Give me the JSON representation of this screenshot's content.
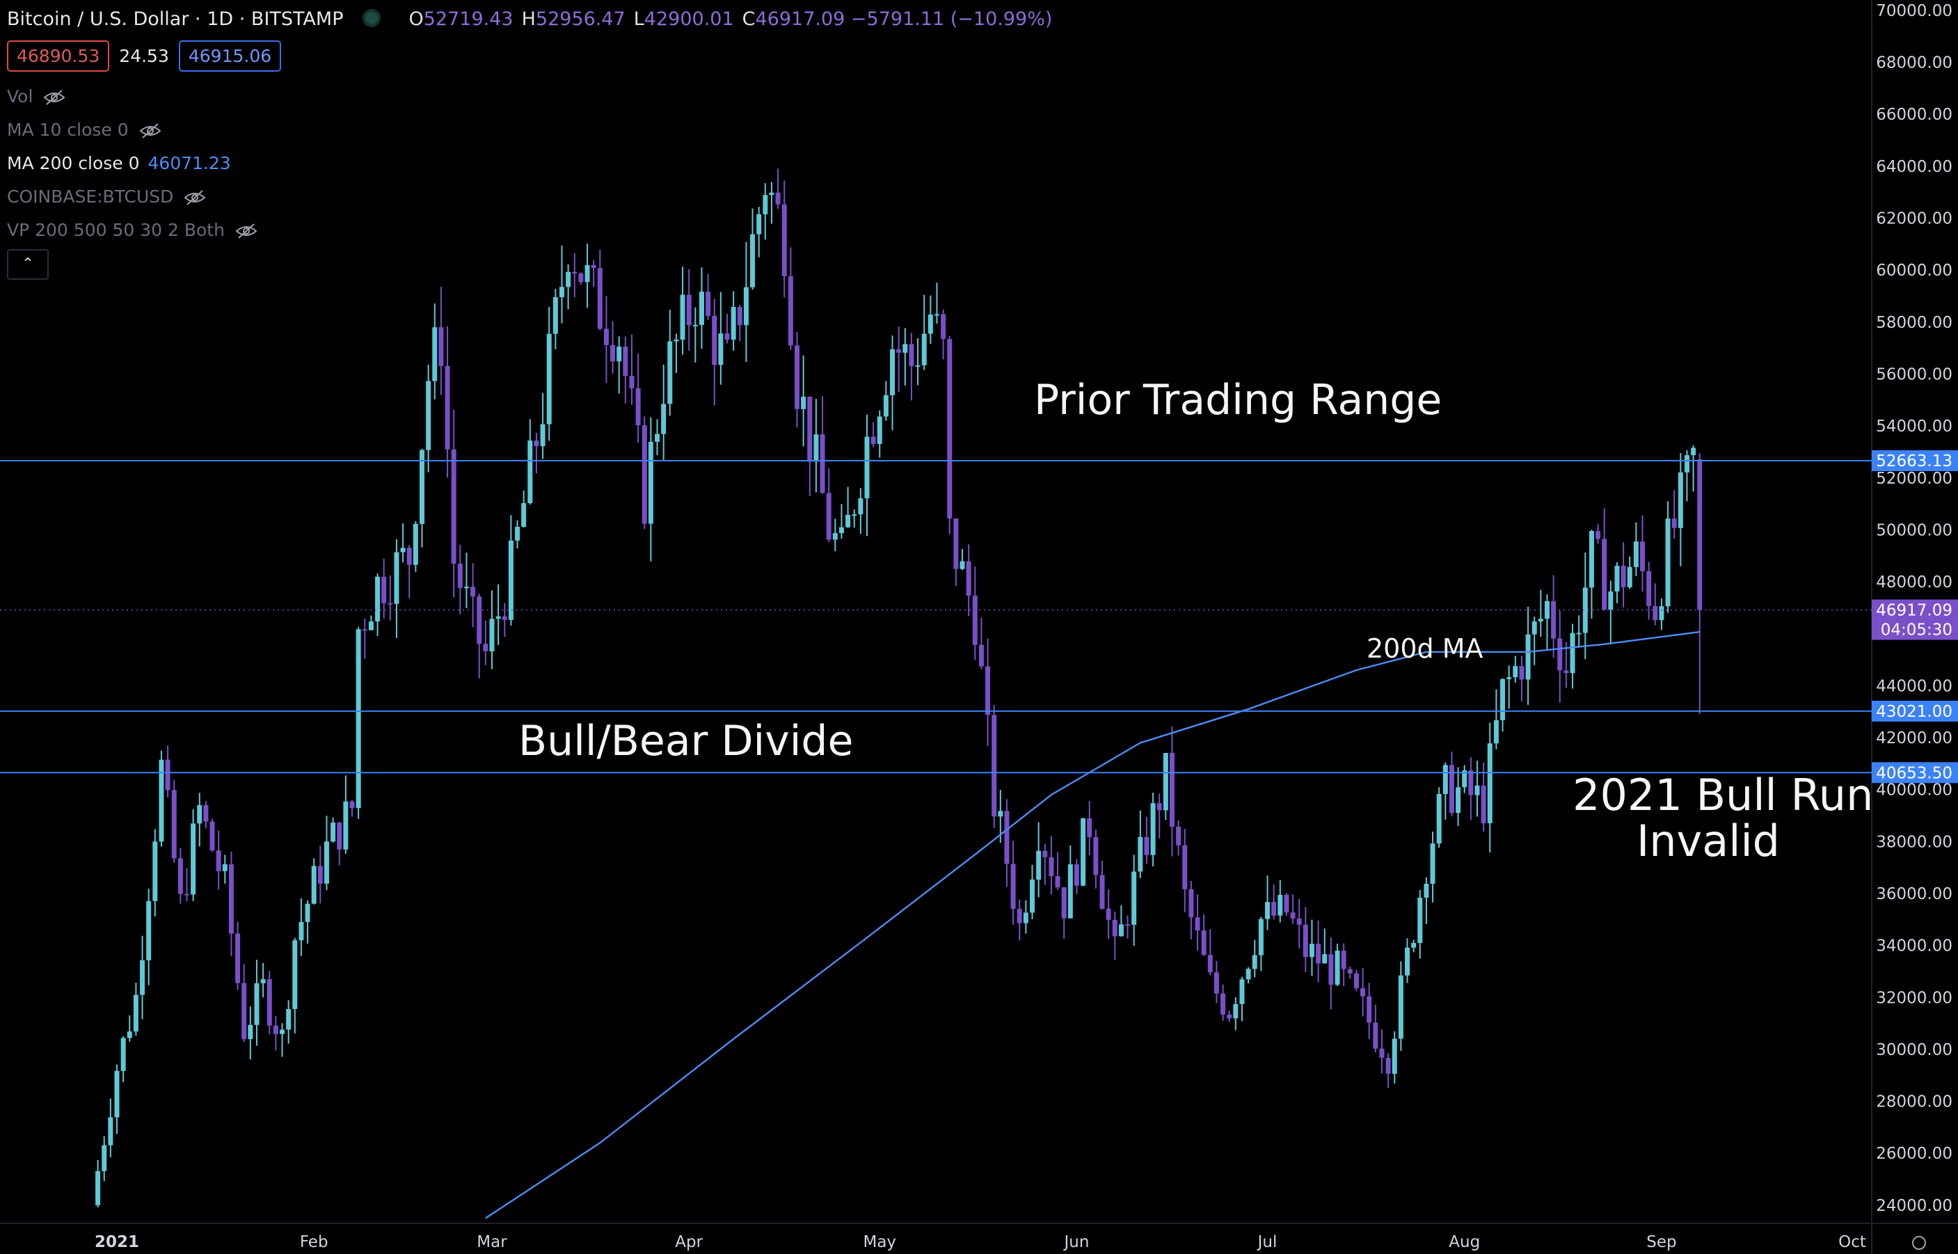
{
  "header": {
    "symbol_title": "Bitcoin / U.S. Dollar · 1D · BITSTAMP",
    "ohlc": [
      {
        "label": "O",
        "value": "52719.43"
      },
      {
        "label": "H",
        "value": "52956.47"
      },
      {
        "label": "L",
        "value": "42900.01"
      },
      {
        "label": "C",
        "value": "46917.09 −5791.11 (−10.99%)"
      }
    ],
    "bid": "46890.53",
    "spread": "24.53",
    "ask": "46915.06"
  },
  "indicators": [
    {
      "name": "Vol",
      "value": "",
      "hidden": true
    },
    {
      "name": "MA 10 close 0",
      "value": "",
      "hidden": true
    },
    {
      "name": "MA 200 close 0",
      "value": "46071.23",
      "hidden": false
    },
    {
      "name": "COINBASE:BTCUSD",
      "value": "",
      "hidden": true
    },
    {
      "name": "VP 200 500 50 30 2 Both",
      "value": "",
      "hidden": true
    }
  ],
  "collapse_icon": "chevron-up-icon",
  "annotations": {
    "prior_range": "Prior Trading Range",
    "bull_bear": "Bull/Bear Divide",
    "ma_label": "200d MA",
    "bull_run_line1": "2021 Bull Run",
    "bull_run_line2": "Invalid"
  },
  "colors": {
    "background": "#000000",
    "up_candle": "#5fc9d6",
    "down_candle": "#7a4fc8",
    "hline": "#3b82f6",
    "ma_line": "#4c8cf5",
    "last_price_tag": "#7a4fc8"
  },
  "chart_data": {
    "type": "candlestick",
    "ylim": [
      23300,
      70400
    ],
    "x_tick_labels": [
      "2021",
      "Feb",
      "Mar",
      "Apr",
      "May",
      "Jun",
      "Jul",
      "Aug",
      "Sep",
      "Oct"
    ],
    "x_tick_dates": [
      "2021-01-01",
      "2021-02-01",
      "2021-03-01",
      "2021-04-01",
      "2021-05-01",
      "2021-06-01",
      "2021-07-01",
      "2021-08-01",
      "2021-09-01",
      "2021-10-01"
    ],
    "y_ticks": [
      24000,
      26000,
      28000,
      30000,
      32000,
      34000,
      36000,
      38000,
      40000,
      42000,
      44000,
      46000,
      48000,
      50000,
      52000,
      54000,
      56000,
      58000,
      60000,
      62000,
      64000,
      66000,
      68000,
      70000
    ],
    "y_tick_labels": [
      "24000.00",
      "26000.00",
      "28000.00",
      "30000.00",
      "32000.00",
      "34000.00",
      "36000.00",
      "38000.00",
      "40000.00",
      "42000.00",
      "44000.00",
      "46000.00",
      "48000.00",
      "50000.00",
      "52000.00",
      "54000.00",
      "56000.00",
      "58000.00",
      "60000.00",
      "62000.00",
      "64000.00",
      "66000.00",
      "68000.00",
      "70000.00"
    ],
    "horizontal_lines": [
      {
        "value": 52663.13,
        "label": "52663.13"
      },
      {
        "value": 43021.0,
        "label": "43021.00"
      },
      {
        "value": 40653.5,
        "label": "40653.50"
      }
    ],
    "last_price": {
      "value": 46917.09,
      "label": "46917.09",
      "countdown": "04:05:30"
    },
    "closes": [
      {
        "date": "2020-12-28",
        "close": 24000
      },
      {
        "date": "2021-01-01",
        "close": 29300
      },
      {
        "date": "2021-01-04",
        "close": 32000
      },
      {
        "date": "2021-01-08",
        "close": 40800
      },
      {
        "date": "2021-01-11",
        "close": 35500
      },
      {
        "date": "2021-01-14",
        "close": 39200
      },
      {
        "date": "2021-01-18",
        "close": 36300
      },
      {
        "date": "2021-01-21",
        "close": 30800
      },
      {
        "date": "2021-01-24",
        "close": 32300
      },
      {
        "date": "2021-01-27",
        "close": 30400
      },
      {
        "date": "2021-01-29",
        "close": 34300
      },
      {
        "date": "2021-02-03",
        "close": 37700
      },
      {
        "date": "2021-02-07",
        "close": 39300
      },
      {
        "date": "2021-02-08",
        "close": 46200
      },
      {
        "date": "2021-02-11",
        "close": 47900
      },
      {
        "date": "2021-02-16",
        "close": 49000
      },
      {
        "date": "2021-02-19",
        "close": 55900
      },
      {
        "date": "2021-02-21",
        "close": 57400
      },
      {
        "date": "2021-02-23",
        "close": 48800
      },
      {
        "date": "2021-02-26",
        "close": 46300
      },
      {
        "date": "2021-02-28",
        "close": 45200
      },
      {
        "date": "2021-03-04",
        "close": 48400
      },
      {
        "date": "2021-03-09",
        "close": 54800
      },
      {
        "date": "2021-03-13",
        "close": 61200
      },
      {
        "date": "2021-03-17",
        "close": 58900
      },
      {
        "date": "2021-03-21",
        "close": 57500
      },
      {
        "date": "2021-03-25",
        "close": 51300
      },
      {
        "date": "2021-03-28",
        "close": 55800
      },
      {
        "date": "2021-04-02",
        "close": 59000
      },
      {
        "date": "2021-04-07",
        "close": 56300
      },
      {
        "date": "2021-04-10",
        "close": 59800
      },
      {
        "date": "2021-04-13",
        "close": 63500
      },
      {
        "date": "2021-04-16",
        "close": 61300
      },
      {
        "date": "2021-04-18",
        "close": 55800
      },
      {
        "date": "2021-04-23",
        "close": 50100
      },
      {
        "date": "2021-04-25",
        "close": 49000
      },
      {
        "date": "2021-04-29",
        "close": 53500
      },
      {
        "date": "2021-05-03",
        "close": 57200
      },
      {
        "date": "2021-05-06",
        "close": 56400
      },
      {
        "date": "2021-05-09",
        "close": 58300
      },
      {
        "date": "2021-05-11",
        "close": 56700
      },
      {
        "date": "2021-05-12",
        "close": 49800
      },
      {
        "date": "2021-05-16",
        "close": 46700
      },
      {
        "date": "2021-05-19",
        "close": 39500
      },
      {
        "date": "2021-05-21",
        "close": 37300
      },
      {
        "date": "2021-05-23",
        "close": 34700
      },
      {
        "date": "2021-05-26",
        "close": 38600
      },
      {
        "date": "2021-05-30",
        "close": 35700
      },
      {
        "date": "2021-06-03",
        "close": 38700
      },
      {
        "date": "2021-06-07",
        "close": 33600
      },
      {
        "date": "2021-06-11",
        "close": 37300
      },
      {
        "date": "2021-06-15",
        "close": 40500
      },
      {
        "date": "2021-06-18",
        "close": 35800
      },
      {
        "date": "2021-06-22",
        "close": 32500
      },
      {
        "date": "2021-06-25",
        "close": 31600
      },
      {
        "date": "2021-06-30",
        "close": 35000
      },
      {
        "date": "2021-07-04",
        "close": 35300
      },
      {
        "date": "2021-07-07",
        "close": 33800
      },
      {
        "date": "2021-07-12",
        "close": 33000
      },
      {
        "date": "2021-07-16",
        "close": 31500
      },
      {
        "date": "2021-07-20",
        "close": 29800
      },
      {
        "date": "2021-07-22",
        "close": 32200
      },
      {
        "date": "2021-07-26",
        "close": 37300
      },
      {
        "date": "2021-07-29",
        "close": 40000
      },
      {
        "date": "2021-08-01",
        "close": 39900
      },
      {
        "date": "2021-08-04",
        "close": 39500
      },
      {
        "date": "2021-08-07",
        "close": 43700
      },
      {
        "date": "2021-08-11",
        "close": 45500
      },
      {
        "date": "2021-08-14",
        "close": 47100
      },
      {
        "date": "2021-08-17",
        "close": 44700
      },
      {
        "date": "2021-08-21",
        "close": 48900
      },
      {
        "date": "2021-08-24",
        "close": 47700
      },
      {
        "date": "2021-08-28",
        "close": 48900
      },
      {
        "date": "2021-08-31",
        "close": 47100
      },
      {
        "date": "2021-09-02",
        "close": 49300
      },
      {
        "date": "2021-09-05",
        "close": 51800
      },
      {
        "date": "2021-09-06",
        "close": 52700
      },
      {
        "date": "2021-09-07",
        "close": 46917
      }
    ],
    "ma200": [
      {
        "date": "2021-02-28",
        "value": 23500
      },
      {
        "date": "2021-03-18",
        "value": 26400
      },
      {
        "date": "2021-04-08",
        "value": 30400
      },
      {
        "date": "2021-04-29",
        "value": 34300
      },
      {
        "date": "2021-05-16",
        "value": 37500
      },
      {
        "date": "2021-05-28",
        "value": 39800
      },
      {
        "date": "2021-06-11",
        "value": 41800
      },
      {
        "date": "2021-06-28",
        "value": 43100
      },
      {
        "date": "2021-07-15",
        "value": 44600
      },
      {
        "date": "2021-07-26",
        "value": 45300
      },
      {
        "date": "2021-08-11",
        "value": 45300
      },
      {
        "date": "2021-08-23",
        "value": 45600
      },
      {
        "date": "2021-09-07",
        "value": 46071
      }
    ]
  }
}
